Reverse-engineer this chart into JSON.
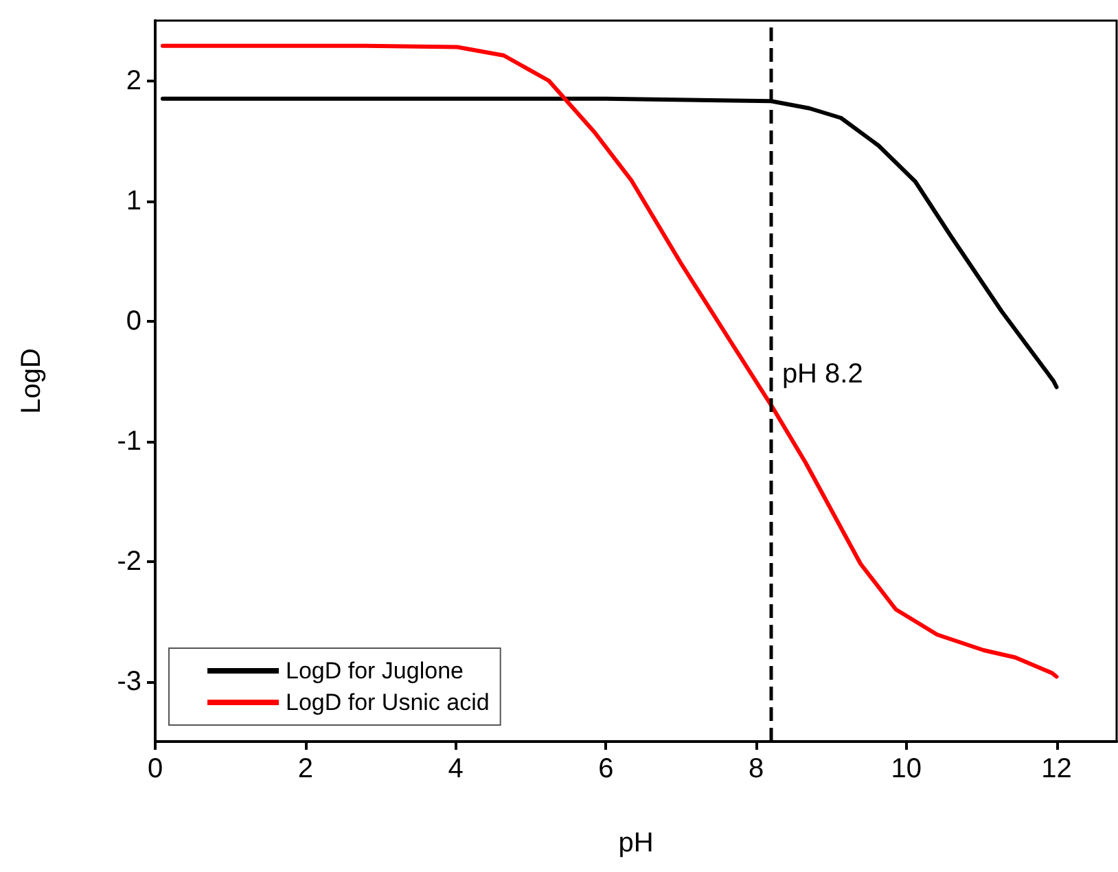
{
  "chart_data": {
    "type": "line",
    "xlabel": "pH",
    "ylabel": "LogD",
    "xlim": [
      0,
      12.8
    ],
    "xticks": [
      0,
      2,
      4,
      6,
      8,
      10,
      12
    ],
    "ylim": [
      -3.5,
      2.5
    ],
    "yticks": [
      -3,
      -2,
      -1,
      0,
      1,
      2
    ],
    "grid": false,
    "legend": "bottom left",
    "marker": "none",
    "line_style": "solid",
    "series": [
      {
        "name": "LogD for Juglone",
        "color": "#000000",
        "x": [
          0.1,
          2,
          4,
          6,
          8.2,
          8.71,
          9.13,
          9.63,
          10.12,
          10.6,
          11.27,
          11.96,
          12
        ],
        "values": [
          1.85,
          1.85,
          1.85,
          1.85,
          1.83,
          1.77,
          1.69,
          1.46,
          1.16,
          0.7,
          0.08,
          -0.5,
          -0.55
        ]
      },
      {
        "name": "LogD for Usnic acid",
        "color": "#ff0000",
        "x": [
          0.1,
          2,
          2.8,
          4.02,
          4.64,
          5.24,
          5.85,
          6.34,
          7,
          7.67,
          8.22,
          8.66,
          9.39,
          9.86,
          10.41,
          11.03,
          11.45,
          11.94,
          12
        ],
        "values": [
          2.29,
          2.29,
          2.29,
          2.28,
          2.21,
          2,
          1.57,
          1.17,
          0.48,
          -0.18,
          -0.72,
          -1.18,
          -2.02,
          -2.4,
          -2.61,
          -2.74,
          -2.8,
          -2.93,
          -2.96
        ]
      }
    ],
    "ref_lines": [
      {
        "axis": "x",
        "value": 8.2,
        "label": "pH 8.2",
        "color": "#000000",
        "line_style": "dashed"
      }
    ]
  }
}
